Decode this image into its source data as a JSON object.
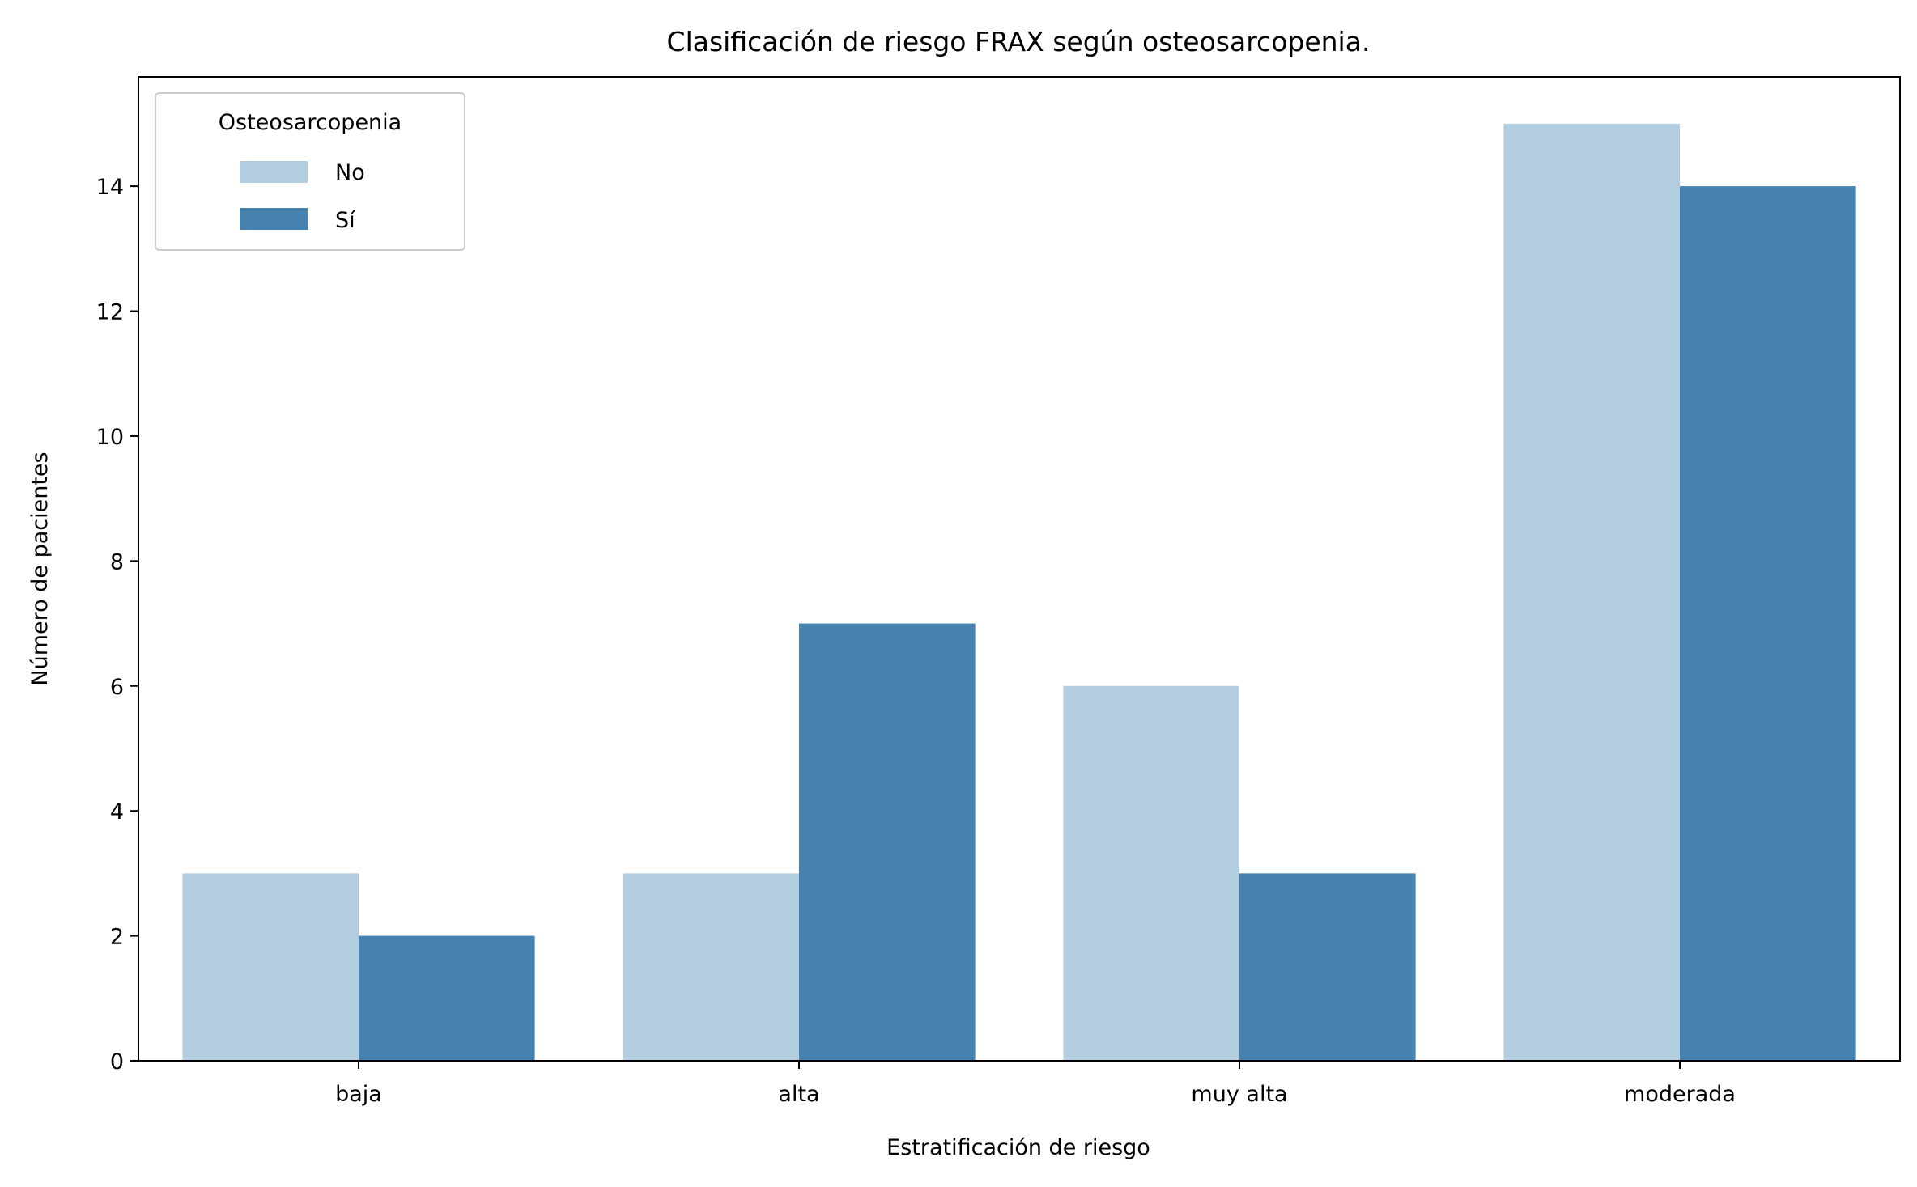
{
  "chart_data": {
    "type": "bar",
    "title": "Clasificación de riesgo FRAX según osteosarcopenia.",
    "xlabel": "Estratificación de riesgo",
    "ylabel": "Número de pacientes",
    "categories": [
      "baja",
      "alta",
      "muy alta",
      "moderada"
    ],
    "series": [
      {
        "name": "No",
        "values": [
          3,
          3,
          6,
          15
        ],
        "color": "#b3cde0"
      },
      {
        "name": "Sí",
        "values": [
          2,
          7,
          3,
          14
        ],
        "color": "#4682b0"
      }
    ],
    "ylim": [
      0,
      15.75
    ],
    "yticks": [
      0,
      2,
      4,
      6,
      8,
      10,
      12,
      14
    ],
    "grid": false,
    "legend": {
      "title": "Osteosarcopenia",
      "placement": "top-left"
    }
  }
}
